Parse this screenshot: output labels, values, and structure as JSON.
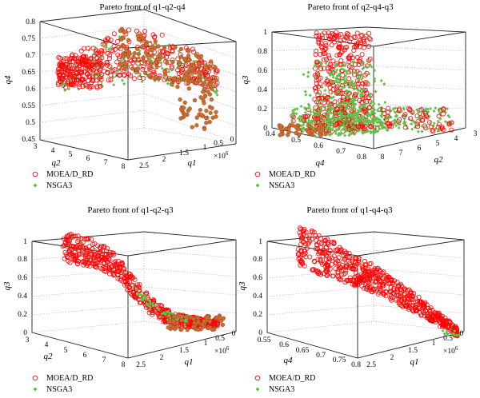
{
  "figure": {
    "legend_entries": [
      "MOEA/D_RD",
      "NSGA3"
    ],
    "colors": {
      "moead_face": "#ff0000",
      "moead_dark": "#b8352a",
      "nsga3": "#5ec24a",
      "brown": "#c0762a"
    },
    "marker_styles": {
      "MOEA/D_RD": "open-circle",
      "NSGA3": "filled-diamond"
    }
  },
  "chart_data": [
    {
      "id": "p1",
      "type": "scatter3d",
      "title": "Pareto front of q1-q2-q4",
      "axes": {
        "q1": {
          "label": "q1",
          "ticks": [
            "2.5",
            "2",
            "1.5",
            "1",
            "0.5",
            "0"
          ],
          "multiplier": "×10",
          "multiplier_exp": "6"
        },
        "q2": {
          "label": "q2",
          "ticks": [
            "3",
            "4",
            "5",
            "6",
            "7",
            "8"
          ]
        },
        "q4": {
          "label": "q4",
          "ticks": [
            "0.45",
            "0.5",
            "0.55",
            "0.6",
            "0.65",
            "0.7",
            "0.75",
            "0.8"
          ]
        }
      },
      "x": "q2",
      "y": "q1",
      "z": "q4",
      "legend": "bottom-left",
      "series": [
        {
          "name": "MOEA/D_RD",
          "x_range": [
            3.5,
            8.0
          ],
          "y_range": [
            0.0,
            2.6
          ],
          "z_range": [
            0.5,
            0.8
          ]
        },
        {
          "name": "NSGA3",
          "x_range": [
            3.5,
            7.5
          ],
          "y_range": [
            0.5,
            2.6
          ],
          "z_range": [
            0.5,
            0.75
          ]
        }
      ]
    },
    {
      "id": "p2",
      "type": "scatter3d",
      "title": "Pareto front of q2-q4-q3",
      "axes": {
        "q4": {
          "label": "q4",
          "ticks": [
            "0.4",
            "0.5",
            "0.6",
            "0.7",
            "0.8"
          ]
        },
        "q2": {
          "label": "q2",
          "ticks": [
            "8",
            "7",
            "6",
            "5",
            "4",
            "3"
          ]
        },
        "q3": {
          "label": "q3",
          "ticks": [
            "0",
            "0.2",
            "0.4",
            "0.6",
            "0.8",
            "1"
          ]
        }
      },
      "x": "q4",
      "y": "q2",
      "z": "q3",
      "legend": "bottom-left",
      "series": [
        {
          "name": "MOEA/D_RD",
          "x_range": [
            0.5,
            0.8
          ],
          "y_range": [
            4.0,
            8.0
          ],
          "z_range": [
            0.0,
            1.0
          ]
        },
        {
          "name": "NSGA3",
          "x_range": [
            0.5,
            0.8
          ],
          "y_range": [
            3.5,
            8.0
          ],
          "z_range": [
            0.0,
            0.8
          ]
        }
      ]
    },
    {
      "id": "p3",
      "type": "scatter3d",
      "title": "Pareto front of q1-q2-q3",
      "axes": {
        "q1": {
          "label": "q1",
          "ticks": [
            "2.5",
            "2",
            "1.5",
            "1",
            "0.5",
            "0"
          ],
          "multiplier": "×10",
          "multiplier_exp": "6"
        },
        "q2": {
          "label": "q2",
          "ticks": [
            "3",
            "4",
            "5",
            "6",
            "7",
            "8"
          ]
        },
        "q3": {
          "label": "q3",
          "ticks": [
            "0",
            "0.2",
            "0.4",
            "0.6",
            "0.8",
            "1"
          ]
        }
      },
      "x": "q2",
      "y": "q1",
      "z": "q3",
      "legend": "bottom-left",
      "series": [
        {
          "name": "MOEA/D_RD",
          "x_range": [
            3.5,
            8.0
          ],
          "y_range": [
            0.0,
            2.5
          ],
          "z_range": [
            0.0,
            1.0
          ]
        },
        {
          "name": "NSGA3",
          "x_range": [
            5.5,
            8.0
          ],
          "y_range": [
            0.2,
            1.5
          ],
          "z_range": [
            0.05,
            0.5
          ]
        }
      ]
    },
    {
      "id": "p4",
      "type": "scatter3d",
      "title": "Pareto front of q1-q4-q3",
      "axes": {
        "q1": {
          "label": "q1",
          "ticks": [
            "2.5",
            "2",
            "1.5",
            "1",
            "0.5",
            "0"
          ],
          "multiplier": "×10",
          "multiplier_exp": "6"
        },
        "q4": {
          "label": "q4",
          "ticks": [
            "0.55",
            "0.6",
            "0.65",
            "0.7",
            "0.75",
            "0.8"
          ]
        },
        "q3": {
          "label": "q3",
          "ticks": [
            "0",
            "0.2",
            "0.4",
            "0.6",
            "0.8",
            "1"
          ]
        }
      },
      "x": "q4",
      "y": "q1",
      "z": "q3",
      "legend": "bottom-left",
      "series": [
        {
          "name": "MOEA/D_RD",
          "x_range": [
            0.55,
            0.8
          ],
          "y_range": [
            0.0,
            2.5
          ],
          "z_range": [
            0.0,
            1.0
          ]
        },
        {
          "name": "NSGA3",
          "x_range": [
            0.75,
            0.8
          ],
          "y_range": [
            0.0,
            0.2
          ],
          "z_range": [
            0.0,
            0.05
          ]
        }
      ]
    }
  ]
}
